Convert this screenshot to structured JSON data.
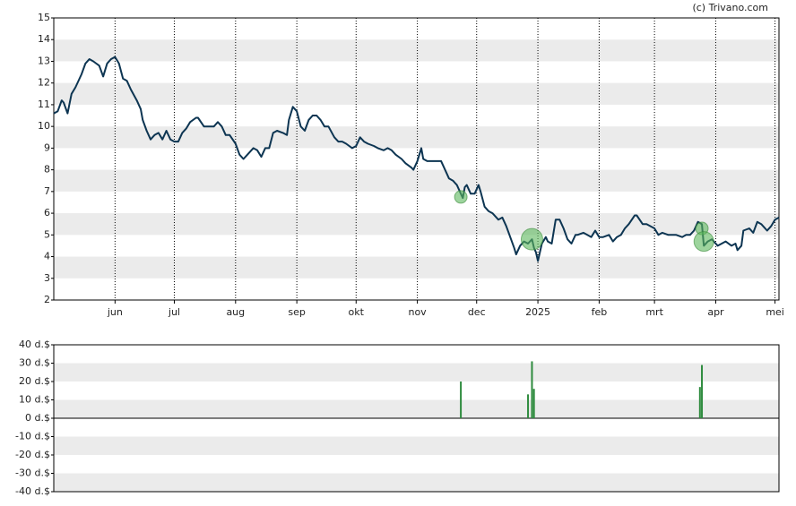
{
  "chart_data": [
    {
      "type": "line",
      "credit": "(c) Trivano.com",
      "color": "#0d3552",
      "xlim": [
        0,
        367
      ],
      "xticks": [
        {
          "value": 31,
          "label": "jun"
        },
        {
          "value": 61,
          "label": "jul"
        },
        {
          "value": 92,
          "label": "aug"
        },
        {
          "value": 123,
          "label": "sep"
        },
        {
          "value": 153,
          "label": "okt"
        },
        {
          "value": 184,
          "label": "nov"
        },
        {
          "value": 214,
          "label": "dec"
        },
        {
          "value": 245,
          "label": "2025"
        },
        {
          "value": 276,
          "label": "feb"
        },
        {
          "value": 304,
          "label": "mrt"
        },
        {
          "value": 335,
          "label": "apr"
        },
        {
          "value": 365,
          "label": "mei"
        }
      ],
      "ylim": [
        2,
        15
      ],
      "yticks": [
        2,
        3,
        4,
        5,
        6,
        7,
        8,
        9,
        10,
        11,
        12,
        13,
        14,
        15
      ],
      "x": [
        0,
        2,
        4,
        5,
        7,
        9,
        11,
        14,
        16,
        18,
        20,
        23,
        25,
        27,
        29,
        31,
        33,
        35,
        37,
        39,
        42,
        44,
        45,
        47,
        49,
        51,
        53,
        55,
        57,
        59,
        61,
        63,
        65,
        67,
        69,
        72,
        73,
        76,
        78,
        81,
        83,
        85,
        87,
        89,
        92,
        94,
        96,
        98,
        101,
        103,
        105,
        107,
        109,
        111,
        113,
        116,
        118,
        119,
        121,
        123,
        125,
        127,
        129,
        131,
        133,
        135,
        137,
        139,
        142,
        144,
        146,
        148,
        151,
        153,
        155,
        157,
        159,
        162,
        164,
        167,
        169,
        171,
        173,
        176,
        178,
        181,
        182,
        184,
        186,
        187,
        189,
        191,
        194,
        196,
        198,
        200,
        202,
        204,
        206,
        207,
        208,
        209,
        211,
        213,
        215,
        216,
        218,
        220,
        222,
        225,
        227,
        229,
        231,
        233,
        234,
        236,
        238,
        240,
        242,
        243,
        244,
        245,
        247,
        249,
        250,
        252,
        254,
        256,
        258,
        260,
        262,
        264,
        265,
        268,
        270,
        272,
        274,
        276,
        278,
        281,
        283,
        285,
        287,
        289,
        291,
        294,
        295,
        298,
        300,
        302,
        304,
        306,
        308,
        311,
        313,
        315,
        318,
        320,
        322,
        324,
        326,
        328,
        329,
        331,
        333,
        336,
        338,
        340,
        343,
        345,
        346,
        348,
        349,
        352,
        354,
        356,
        358,
        361,
        363,
        365,
        367
      ],
      "values": [
        10.6,
        10.7,
        11.2,
        11.1,
        10.6,
        11.5,
        11.8,
        12.4,
        12.9,
        13.1,
        13.0,
        12.8,
        12.3,
        12.9,
        13.1,
        13.2,
        12.9,
        12.2,
        12.1,
        11.7,
        11.2,
        10.8,
        10.3,
        9.8,
        9.4,
        9.6,
        9.7,
        9.4,
        9.8,
        9.4,
        9.3,
        9.3,
        9.7,
        9.9,
        10.2,
        10.4,
        10.4,
        10.0,
        10.0,
        10.0,
        10.2,
        10.0,
        9.6,
        9.6,
        9.2,
        8.7,
        8.5,
        8.7,
        9.0,
        8.9,
        8.6,
        9.0,
        9.0,
        9.7,
        9.8,
        9.7,
        9.6,
        10.3,
        10.9,
        10.7,
        10.0,
        9.8,
        10.3,
        10.5,
        10.5,
        10.3,
        10.0,
        10.0,
        9.5,
        9.3,
        9.3,
        9.2,
        9.0,
        9.1,
        9.5,
        9.3,
        9.2,
        9.1,
        9.0,
        8.9,
        9.0,
        8.9,
        8.7,
        8.5,
        8.3,
        8.1,
        8.0,
        8.4,
        9.0,
        8.5,
        8.4,
        8.4,
        8.4,
        8.4,
        8.0,
        7.6,
        7.5,
        7.3,
        6.9,
        6.7,
        7.2,
        7.3,
        6.9,
        6.9,
        7.3,
        7.0,
        6.3,
        6.1,
        6.0,
        5.7,
        5.8,
        5.4,
        4.9,
        4.4,
        4.1,
        4.5,
        4.7,
        4.6,
        4.8,
        4.4,
        4.2,
        3.8,
        4.6,
        4.9,
        4.7,
        4.6,
        5.7,
        5.7,
        5.3,
        4.8,
        4.6,
        5.0,
        5.0,
        5.1,
        5.0,
        4.9,
        5.2,
        4.9,
        4.9,
        5.0,
        4.7,
        4.9,
        5.0,
        5.3,
        5.5,
        5.9,
        5.9,
        5.5,
        5.5,
        5.4,
        5.3,
        5.0,
        5.1,
        5.0,
        5.0,
        5.0,
        4.9,
        5.0,
        5.0,
        5.2,
        5.6,
        5.5,
        4.5,
        4.7,
        4.8,
        4.5,
        4.6,
        4.7,
        4.5,
        4.6,
        4.3,
        4.5,
        5.2,
        5.3,
        5.1,
        5.6,
        5.5,
        5.2,
        5.4,
        5.7,
        5.8
      ],
      "markers": {
        "color": "#5cb85c",
        "x": [
          206,
          242,
          328,
          329
        ],
        "values": [
          6.75,
          4.8,
          5.3,
          4.7
        ],
        "sizes": [
          7,
          12,
          7,
          11
        ]
      }
    },
    {
      "type": "bar",
      "color": "#2e8b3e",
      "xlim": [
        0,
        367
      ],
      "ylim": [
        -40,
        40
      ],
      "yticks": [
        {
          "value": -40,
          "label": "-40 d.$"
        },
        {
          "value": -30,
          "label": "-30 d.$"
        },
        {
          "value": -20,
          "label": "-20 d.$"
        },
        {
          "value": -10,
          "label": "-10 d.$"
        },
        {
          "value": 0,
          "label": "0 d.$"
        },
        {
          "value": 10,
          "label": "10 d.$"
        },
        {
          "value": 20,
          "label": "20 d.$"
        },
        {
          "value": 30,
          "label": "30 d.$"
        },
        {
          "value": 40,
          "label": "40 d.$"
        }
      ],
      "x": [
        206,
        240,
        242,
        243,
        327,
        328
      ],
      "values": [
        20,
        13,
        31,
        16,
        17,
        29
      ]
    }
  ]
}
